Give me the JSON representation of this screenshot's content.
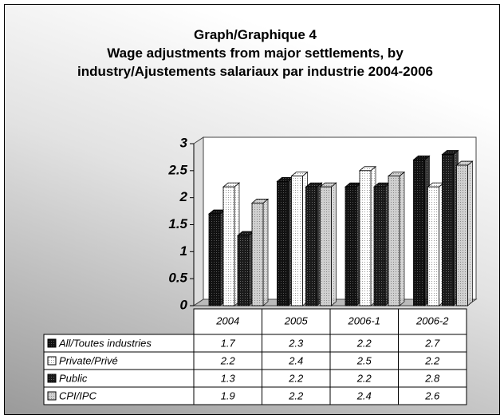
{
  "chart_data": {
    "type": "bar",
    "title": "Graph/Graphique 4",
    "subtitle": "Wage adjustments from major settlements, by industry/Ajustements salariaux par industrie 2004-2006",
    "categories": [
      "2004",
      "2005",
      "2006-1",
      "2006-2"
    ],
    "series": [
      {
        "name": "All/Toutes industries",
        "color": "#111111",
        "values": [
          1.7,
          2.3,
          2.2,
          2.7
        ]
      },
      {
        "name": "Private/Privé",
        "color": "#ffffff",
        "values": [
          2.2,
          2.4,
          2.5,
          2.2
        ]
      },
      {
        "name": "Public",
        "color": "#1a1a1a",
        "values": [
          1.3,
          2.2,
          2.2,
          2.8
        ]
      },
      {
        "name": "CPI/IPC",
        "color": "#d0d0d0",
        "values": [
          1.9,
          2.2,
          2.4,
          2.6
        ]
      }
    ],
    "ylim": [
      0,
      3
    ],
    "yticks": [
      0,
      0.5,
      1,
      1.5,
      2,
      2.5,
      3
    ],
    "data_table": true
  }
}
